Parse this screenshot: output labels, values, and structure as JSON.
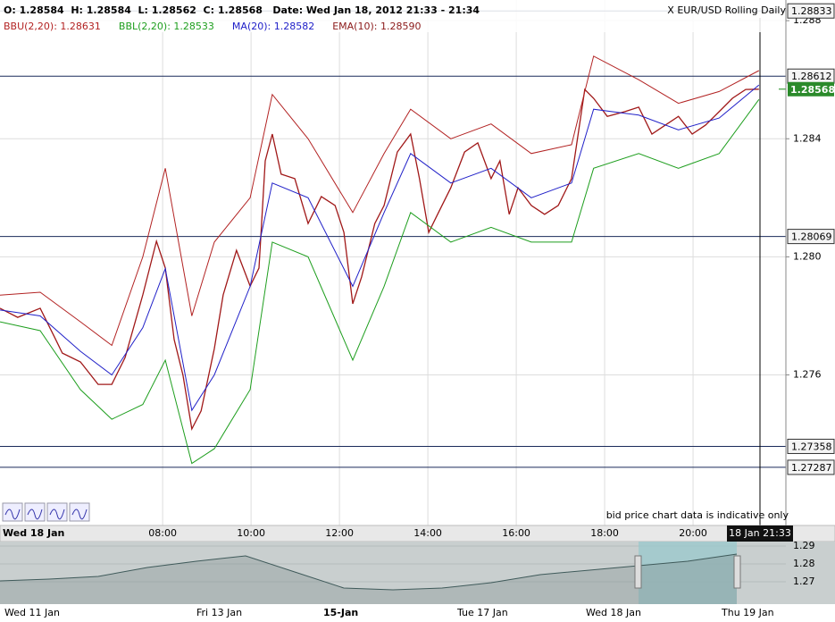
{
  "chart_data": {
    "type": "line",
    "header": "O: 1.28584  H: 1.28584  L: 1.28562  C: 1.28568   Date: Wed Jan 18, 2012 21:33 - 21:34",
    "instrument": "X EUR/USD Rolling Daily",
    "legend": [
      {
        "label": "BBU(2,20): 1.28631",
        "color": "#b22222"
      },
      {
        "label": "BBL(2,20): 1.28533",
        "color": "#1e9e1e"
      },
      {
        "label": "MA(20): 1.28582",
        "color": "#2020c8"
      },
      {
        "label": "EMA(10): 1.28590",
        "color": "#8b1a1a"
      }
    ],
    "note": "bid price chart data is indicative only",
    "date_label": "Wed 18 Jan",
    "cursor_label": "18 Jan 21:33",
    "xlim": [
      4.32,
      22.1
    ],
    "ylim": [
      1.2709,
      1.2887
    ],
    "xticks": [
      {
        "value": 8,
        "label": "08:00"
      },
      {
        "value": 10,
        "label": "10:00"
      },
      {
        "value": 12,
        "label": "12:00"
      },
      {
        "value": 14,
        "label": "14:00"
      },
      {
        "value": 16,
        "label": "16:00"
      },
      {
        "value": 18,
        "label": "18:00"
      },
      {
        "value": 20,
        "label": "20:00"
      }
    ],
    "yticks": [
      1.288,
      1.284,
      {
        "value": 1.28,
        "label": "1.280"
      },
      1.276
    ],
    "grid": true,
    "levels": [
      1.28833,
      1.28612,
      1.28069,
      1.27358,
      1.27287
    ],
    "current_price": 1.28568,
    "series": [
      {
        "color": "#a01818",
        "x": [
          4.32,
          4.72,
          5.23,
          5.53,
          5.73,
          6.14,
          6.54,
          6.85,
          7.15,
          7.55,
          7.86,
          8.06,
          8.26,
          8.46,
          8.66,
          8.87,
          9.17,
          9.37,
          9.67,
          9.98,
          10.18,
          10.32,
          10.48,
          10.68,
          10.99,
          11.29,
          11.59,
          11.9,
          12.1,
          12.3,
          12.5,
          12.8,
          13.01,
          13.31,
          13.61,
          13.81,
          14.02,
          14.22,
          14.52,
          14.83,
          15.13,
          15.43,
          15.63,
          15.84,
          16.04,
          16.34,
          16.64,
          16.95,
          17.25,
          17.55,
          17.75,
          18.06,
          18.46,
          18.77,
          19.07,
          19.37,
          19.67,
          19.98,
          20.28,
          20.59,
          20.89,
          21.19,
          21.49
        ],
        "values": [
          1.27826,
          1.27795,
          1.27826,
          1.27735,
          1.27674,
          1.27644,
          1.27568,
          1.27568,
          1.27659,
          1.27871,
          1.28053,
          1.27962,
          1.2772,
          1.27599,
          1.27417,
          1.27478,
          1.27689,
          1.27871,
          1.28022,
          1.27901,
          1.27962,
          1.28325,
          1.28416,
          1.2828,
          1.28265,
          1.28113,
          1.28204,
          1.28174,
          1.28083,
          1.27841,
          1.27932,
          1.28113,
          1.28174,
          1.28355,
          1.28416,
          1.28265,
          1.28083,
          1.28144,
          1.28234,
          1.28355,
          1.28386,
          1.28265,
          1.28325,
          1.28144,
          1.28234,
          1.28174,
          1.28144,
          1.28174,
          1.28265,
          1.28567,
          1.28537,
          1.28476,
          1.28492,
          1.28507,
          1.28416,
          1.28446,
          1.28476,
          1.28416,
          1.28446,
          1.28492,
          1.28537,
          1.28567,
          1.28568
        ]
      },
      {
        "color": "#b22222",
        "x": [
          4.32,
          5.23,
          6.14,
          6.85,
          7.55,
          8.06,
          8.66,
          9.17,
          9.98,
          10.48,
          11.29,
          12.3,
          13.01,
          13.61,
          14.52,
          15.43,
          16.34,
          17.25,
          17.75,
          18.77,
          19.67,
          20.59,
          21.49
        ],
        "values": [
          1.2787,
          1.2788,
          1.2778,
          1.277,
          1.28,
          1.283,
          1.278,
          1.2805,
          1.282,
          1.2855,
          1.284,
          1.2815,
          1.2835,
          1.285,
          1.284,
          1.2845,
          1.2835,
          1.2838,
          1.2868,
          1.286,
          1.2852,
          1.2856,
          1.28631
        ]
      },
      {
        "color": "#1e9e1e",
        "x": [
          4.32,
          5.23,
          6.14,
          6.85,
          7.55,
          8.06,
          8.66,
          9.17,
          9.98,
          10.48,
          11.29,
          12.3,
          13.01,
          13.61,
          14.52,
          15.43,
          16.34,
          17.25,
          17.75,
          18.77,
          19.67,
          20.59,
          21.49
        ],
        "values": [
          1.2778,
          1.2775,
          1.2755,
          1.2745,
          1.275,
          1.2765,
          1.273,
          1.2735,
          1.2755,
          1.2805,
          1.28,
          1.2765,
          1.279,
          1.2815,
          1.2805,
          1.281,
          1.2805,
          1.2805,
          1.283,
          1.2835,
          1.283,
          1.2835,
          1.28533
        ]
      },
      {
        "color": "#2020c8",
        "x": [
          4.32,
          5.23,
          6.14,
          6.85,
          7.55,
          8.06,
          8.66,
          9.17,
          9.98,
          10.48,
          11.29,
          12.3,
          13.01,
          13.61,
          14.52,
          15.43,
          16.34,
          17.25,
          17.75,
          18.77,
          19.67,
          20.59,
          21.49
        ],
        "values": [
          1.2782,
          1.278,
          1.2768,
          1.276,
          1.2776,
          1.2796,
          1.2748,
          1.276,
          1.279,
          1.2825,
          1.282,
          1.279,
          1.2815,
          1.2835,
          1.2825,
          1.283,
          1.282,
          1.2825,
          1.285,
          1.2848,
          1.2843,
          1.2847,
          1.28582
        ]
      }
    ],
    "navigator": {
      "labels": [
        "Wed 11 Jan",
        "Fri 13 Jan",
        "15-Jan",
        "Tue 17 Jan",
        "Wed 18 Jan",
        "Thu 19 Jan"
      ],
      "ylim": [
        1.2575,
        1.2925
      ],
      "yticks": [
        1.29,
        1.28,
        1.27
      ],
      "values": [
        1.2705,
        1.2715,
        1.273,
        1.278,
        1.2815,
        1.2845,
        1.2755,
        1.2665,
        1.2655,
        1.2665,
        1.2695,
        1.274,
        1.2765,
        1.279,
        1.2815,
        1.2855
      ]
    }
  }
}
